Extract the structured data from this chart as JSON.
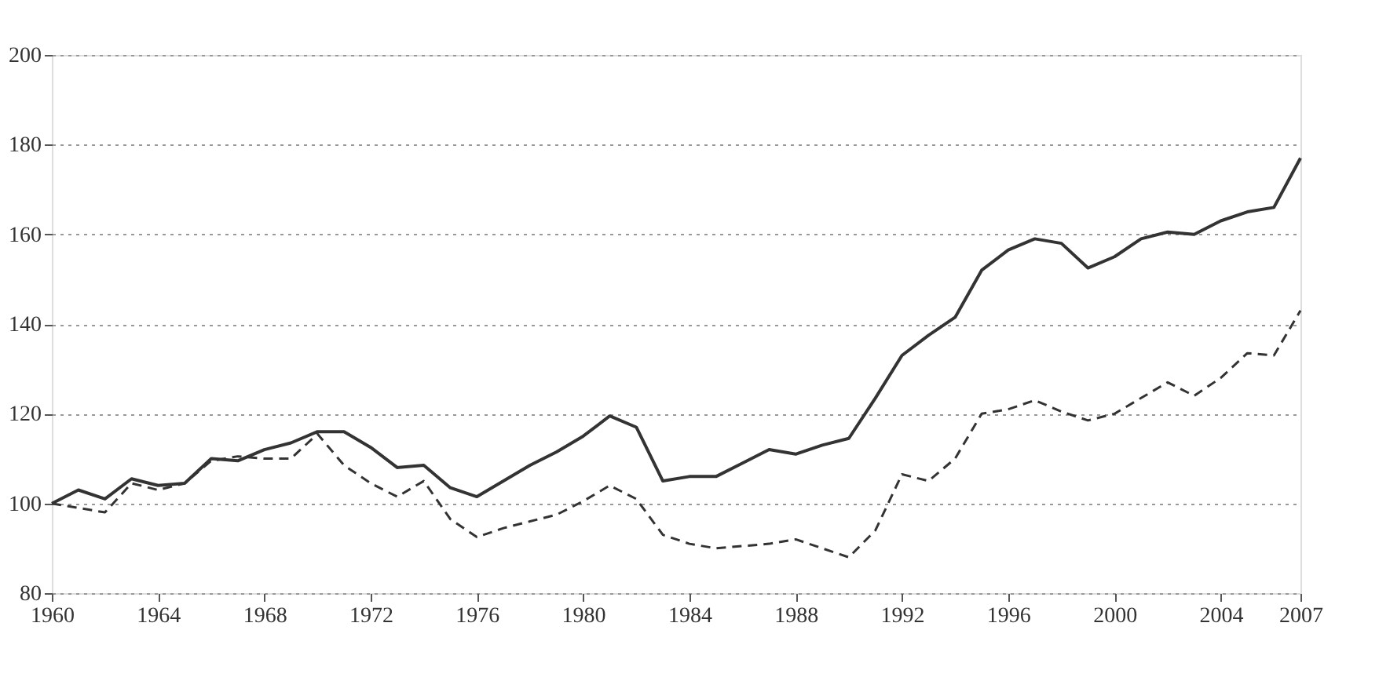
{
  "chart_data": {
    "type": "line",
    "x": [
      1960,
      1961,
      1962,
      1963,
      1964,
      1965,
      1966,
      1967,
      1968,
      1969,
      1970,
      1971,
      1972,
      1973,
      1974,
      1975,
      1976,
      1977,
      1978,
      1979,
      1980,
      1981,
      1982,
      1983,
      1984,
      1985,
      1986,
      1987,
      1988,
      1989,
      1990,
      1991,
      1992,
      1993,
      1994,
      1995,
      1996,
      1997,
      1998,
      1999,
      2000,
      2001,
      2002,
      2003,
      2004,
      2005,
      2006,
      2007
    ],
    "series": [
      {
        "color": "#333333",
        "line_style": "solid",
        "values": [
          100,
          103,
          101,
          105.5,
          104,
          104.5,
          110,
          109.5,
          112,
          113.5,
          116,
          116,
          112.5,
          108,
          108.5,
          103.5,
          101.5,
          105,
          108.5,
          111.5,
          115,
          119.5,
          117,
          105,
          106,
          106,
          109,
          112,
          111,
          113,
          114.5,
          123.5,
          133,
          137.5,
          141.5,
          152,
          156.5,
          159,
          158,
          152.5,
          155,
          159,
          160.5,
          160,
          163,
          165,
          166,
          177
        ]
      },
      {
        "color": "#333333",
        "line_style": "dashed",
        "values": [
          100,
          99,
          98,
          104.5,
          103,
          104.5,
          109.5,
          110.5,
          110,
          110,
          115.5,
          108.5,
          104.5,
          101.5,
          105,
          96.5,
          92.5,
          94.5,
          96,
          97.5,
          100.5,
          104,
          101,
          93,
          91,
          90,
          90.5,
          91,
          92,
          90,
          88,
          94,
          106.5,
          105,
          110,
          120,
          121,
          123,
          120.5,
          118.5,
          120,
          123.5,
          127,
          124,
          128,
          133.5,
          133,
          143
        ]
      }
    ],
    "xlim": [
      1960,
      2007
    ],
    "xticks": [
      1960,
      1964,
      1968,
      1972,
      1976,
      1980,
      1984,
      1988,
      1992,
      1996,
      2000,
      2004,
      2007
    ],
    "ylim": [
      80,
      200
    ],
    "yticks": [
      80,
      100,
      120,
      140,
      160,
      180,
      200
    ],
    "grid": "y",
    "marker": "none"
  }
}
